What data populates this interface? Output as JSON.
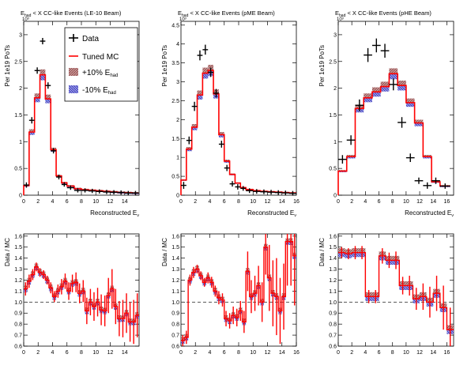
{
  "figure": {
    "legend": {
      "data_label": "Data",
      "mc_label": "Tuned MC",
      "plus_main": "+10% E",
      "plus_sub": "had",
      "minus_main": "-10% E",
      "minus_sub": "had"
    },
    "colors": {
      "mc": "#ff0000",
      "data": "#000000",
      "band_plus": "#b07878",
      "band_minus": "#6a6ad0",
      "unity": "#555555"
    }
  },
  "chart_data": [
    {
      "id": "le_spectrum",
      "type": "line",
      "title_pre": "E",
      "title_sub": "had",
      "title_post": " < X CC-like Events (LE-10 Beam)",
      "xlabel_main": "Reconstructed E",
      "xlabel_sub": "ν",
      "ylabel": "Per 1e19 PoTs",
      "exponent_label": "10³",
      "xlim": [
        0,
        16
      ],
      "ylim": [
        0,
        3.25
      ],
      "xticks": [
        0,
        2,
        4,
        6,
        8,
        10,
        12,
        14
      ],
      "yticks": [
        0,
        0.5,
        1.0,
        1.5,
        2.0,
        2.5,
        3.0
      ],
      "ytick_labels": [
        "0",
        "0.5",
        "1",
        "1.5",
        "2",
        "2.5",
        "3"
      ],
      "bin_edges": [
        0,
        0.75,
        1.5,
        2.25,
        3,
        3.75,
        4.5,
        5.25,
        6,
        7,
        8,
        9,
        10,
        11,
        12,
        13,
        14,
        15,
        16
      ],
      "mc": [
        0.18,
        1.18,
        1.82,
        2.25,
        1.8,
        0.85,
        0.36,
        0.23,
        0.17,
        0.12,
        0.1,
        0.09,
        0.08,
        0.07,
        0.06,
        0.05,
        0.045,
        0.04
      ],
      "data_x": [
        0.375,
        1.125,
        1.875,
        2.625,
        3.375,
        4.125,
        4.875,
        5.625,
        6.5,
        7.5,
        8.5,
        9.5,
        10.5,
        11.5,
        12.5,
        13.5,
        14.5,
        15.5
      ],
      "data_y": [
        0.19,
        1.4,
        2.33,
        2.88,
        2.05,
        0.83,
        0.34,
        0.2,
        0.14,
        0.09,
        0.09,
        0.08,
        0.07,
        0.06,
        0.055,
        0.05,
        0.04,
        0.04
      ],
      "data_err": [
        0.02,
        0.03,
        0.03,
        0.03,
        0.03,
        0.02,
        0.015,
        0.01,
        0.01,
        0.01,
        0.01,
        0.01,
        0.01,
        0.01,
        0.01,
        0.01,
        0.01,
        0.01
      ],
      "has_legend": true
    },
    {
      "id": "pme_spectrum",
      "type": "line",
      "title_pre": "E",
      "title_sub": "had",
      "title_post": " < X CC-like Events (pME Beam)",
      "xlabel_main": "Reconstructed E",
      "xlabel_sub": "ν",
      "ylabel": "Per 1e19 PoTs",
      "exponent_label": "10³",
      "xlim": [
        0,
        16
      ],
      "ylim": [
        0,
        4.6
      ],
      "xticks": [
        0,
        2,
        4,
        6,
        8,
        10,
        12,
        14,
        16
      ],
      "yticks": [
        0,
        0.5,
        1.0,
        1.5,
        2.0,
        2.5,
        3.0,
        3.5,
        4.0,
        4.5
      ],
      "ytick_labels": [
        "0",
        "0.5",
        "1",
        "1.5",
        "2",
        "2.5",
        "3",
        "3.5",
        "4",
        "4.5"
      ],
      "bin_edges": [
        0,
        0.75,
        1.5,
        2.25,
        3,
        3.75,
        4.5,
        5.25,
        6,
        6.75,
        7.5,
        8.25,
        9,
        10,
        11,
        12,
        13,
        14,
        15,
        16
      ],
      "mc": [
        0.4,
        1.22,
        1.8,
        2.65,
        3.23,
        3.3,
        2.68,
        1.6,
        0.9,
        0.55,
        0.32,
        0.2,
        0.15,
        0.12,
        0.1,
        0.09,
        0.08,
        0.07,
        0.06
      ],
      "data_x": [
        0.375,
        1.125,
        1.875,
        2.625,
        3.375,
        4.125,
        4.875,
        5.625,
        6.375,
        7.125,
        7.875,
        8.625,
        9.5,
        10.5,
        11.5,
        12.5,
        13.5,
        14.5,
        15.5
      ],
      "data_y": [
        0.26,
        1.45,
        2.35,
        3.7,
        3.85,
        3.25,
        2.7,
        1.35,
        0.72,
        0.3,
        0.22,
        0.18,
        0.12,
        0.1,
        0.09,
        0.08,
        0.07,
        0.06,
        0.05
      ],
      "data_err": [
        0.05,
        0.06,
        0.08,
        0.09,
        0.09,
        0.08,
        0.07,
        0.05,
        0.04,
        0.03,
        0.03,
        0.02,
        0.02,
        0.02,
        0.02,
        0.02,
        0.02,
        0.02,
        0.02
      ],
      "has_legend": false
    },
    {
      "id": "phe_spectrum",
      "type": "line",
      "title_pre": "E",
      "title_sub": "had",
      "title_post": " < X CC-like Events (pHE Beam)",
      "xlabel_main": "Reconstructed E",
      "xlabel_sub": "ν",
      "ylabel": "Per 1e19 PoTs",
      "exponent_label": "10³",
      "xlim": [
        0,
        17
      ],
      "ylim": [
        0,
        3.25
      ],
      "xticks": [
        0,
        2,
        4,
        6,
        8,
        10,
        12,
        14,
        16
      ],
      "yticks": [
        0,
        0.5,
        1.0,
        1.5,
        2.0,
        2.5,
        3.0
      ],
      "ytick_labels": [
        "0",
        "0.5",
        "1",
        "1.5",
        "2",
        "2.5",
        "3"
      ],
      "bin_edges": [
        0,
        1.25,
        2.5,
        3.75,
        5,
        6.25,
        7.5,
        8.75,
        10,
        11.25,
        12.5,
        13.75,
        15,
        16.5
      ],
      "mc": [
        0.45,
        0.72,
        1.62,
        1.82,
        1.93,
        2.03,
        2.27,
        2.05,
        1.73,
        1.35,
        0.72,
        0.25,
        0.17
      ],
      "data_x": [
        0.625,
        1.875,
        3.125,
        4.375,
        5.625,
        6.875,
        8.125,
        9.375,
        10.625,
        11.875,
        13.125,
        14.375,
        15.75
      ],
      "data_y": [
        0.67,
        1.03,
        1.68,
        2.62,
        2.8,
        2.7,
        2.07,
        1.36,
        0.7,
        0.27,
        0.18,
        0.27,
        0.17
      ],
      "data_err": [
        0.05,
        0.06,
        0.08,
        0.1,
        0.1,
        0.1,
        0.08,
        0.07,
        0.05,
        0.03,
        0.03,
        0.03,
        0.02
      ],
      "has_legend": false
    },
    {
      "id": "le_ratio",
      "type": "line",
      "ylabel": "Data / MC",
      "xlim": [
        0,
        16
      ],
      "ylim": [
        0.6,
        1.62
      ],
      "xticks": [
        0,
        2,
        4,
        6,
        8,
        10,
        12,
        14
      ],
      "yticks": [
        0.6,
        0.7,
        0.8,
        0.9,
        1.0,
        1.1,
        1.2,
        1.3,
        1.4,
        1.5,
        1.6
      ],
      "ytick_labels": [
        "0.6",
        "0.7",
        "0.8",
        "0.9",
        "1.0",
        "1.1",
        "1.2",
        "1.3",
        "1.4",
        "1.5",
        "1.6"
      ],
      "bin_edges": [
        0,
        0.5,
        1,
        1.5,
        2,
        2.5,
        3,
        3.5,
        4,
        4.5,
        5,
        5.5,
        6,
        6.5,
        7,
        7.5,
        8,
        8.5,
        9,
        9.5,
        10,
        10.5,
        11,
        11.5,
        12,
        12.5,
        13,
        13.5,
        14,
        14.5,
        15,
        15.5,
        16
      ],
      "ratio": [
        1.12,
        1.19,
        1.25,
        1.32,
        1.27,
        1.25,
        1.2,
        1.13,
        1.05,
        1.1,
        1.14,
        1.19,
        1.1,
        1.17,
        1.18,
        1.08,
        1.1,
        0.92,
        1.0,
        0.96,
        1.0,
        0.93,
        0.92,
        1.06,
        1.12,
        0.96,
        0.85,
        0.85,
        0.9,
        0.82,
        0.82,
        0.88
      ],
      "ratio_err": [
        0.06,
        0.06,
        0.05,
        0.04,
        0.04,
        0.04,
        0.04,
        0.05,
        0.05,
        0.06,
        0.07,
        0.07,
        0.08,
        0.08,
        0.09,
        0.09,
        0.1,
        0.12,
        0.12,
        0.13,
        0.13,
        0.14,
        0.14,
        0.16,
        0.18,
        0.16,
        0.16,
        0.17,
        0.18,
        0.18,
        0.2,
        0.2
      ],
      "band": 0.03
    },
    {
      "id": "pme_ratio",
      "type": "line",
      "ylabel": "Data / MC",
      "xlim": [
        0,
        16
      ],
      "ylim": [
        0.6,
        1.62
      ],
      "xticks": [
        0,
        2,
        4,
        6,
        8,
        10,
        12,
        14,
        16
      ],
      "yticks": [
        0.6,
        0.7,
        0.8,
        0.9,
        1.0,
        1.1,
        1.2,
        1.3,
        1.4,
        1.5,
        1.6
      ],
      "ytick_labels": [
        "0.6",
        "0.7",
        "0.8",
        "0.9",
        "1.0",
        "1.1",
        "1.2",
        "1.3",
        "1.4",
        "1.5",
        "1.6"
      ],
      "bin_edges": [
        0,
        0.5,
        1,
        1.5,
        2,
        2.5,
        3,
        3.5,
        4,
        4.5,
        5,
        5.5,
        6,
        6.5,
        7,
        7.5,
        8,
        8.5,
        9,
        9.5,
        10,
        10.5,
        11,
        11.5,
        12,
        12.5,
        13,
        13.5,
        14,
        14.5,
        15,
        15.5,
        16
      ],
      "ratio": [
        0.65,
        0.68,
        1.2,
        1.27,
        1.3,
        1.24,
        1.18,
        1.22,
        1.18,
        1.1,
        1.04,
        1.02,
        0.85,
        0.83,
        0.88,
        0.86,
        0.92,
        0.82,
        1.28,
        1.05,
        1.08,
        1.15,
        1.0,
        1.5,
        1.22,
        1.08,
        1.05,
        0.92,
        1.05,
        1.55,
        1.55,
        1.42
      ],
      "ratio_err": [
        0.05,
        0.06,
        0.05,
        0.05,
        0.04,
        0.04,
        0.04,
        0.05,
        0.05,
        0.05,
        0.06,
        0.06,
        0.07,
        0.07,
        0.08,
        0.08,
        0.09,
        0.1,
        0.18,
        0.15,
        0.16,
        0.18,
        0.18,
        0.25,
        0.3,
        0.3,
        0.35,
        0.3,
        0.3,
        0.4,
        0.4,
        0.45
      ],
      "band": 0.03
    },
    {
      "id": "phe_ratio",
      "type": "line",
      "ylabel": "Data / MC",
      "xlim": [
        0,
        17
      ],
      "ylim": [
        0.6,
        1.62
      ],
      "xticks": [
        0,
        2,
        4,
        6,
        8,
        10,
        12,
        14,
        16
      ],
      "yticks": [
        0.6,
        0.7,
        0.8,
        0.9,
        1.0,
        1.1,
        1.2,
        1.3,
        1.4,
        1.5,
        1.6
      ],
      "ytick_labels": [
        "0.6",
        "0.7",
        "0.8",
        "0.9",
        "1.0",
        "1.1",
        "1.2",
        "1.3",
        "1.4",
        "1.5",
        "1.6"
      ],
      "bin_edges": [
        0,
        1,
        2,
        3,
        4,
        5,
        6,
        7,
        8,
        9,
        10,
        11,
        12,
        13,
        14,
        15,
        16,
        17
      ],
      "ratio": [
        1.45,
        1.44,
        1.45,
        1.45,
        1.05,
        1.05,
        1.42,
        1.38,
        1.38,
        1.15,
        1.15,
        1.03,
        1.05,
        1.0,
        1.08,
        0.95,
        0.75
      ],
      "ratio_err": [
        0.05,
        0.05,
        0.06,
        0.06,
        0.06,
        0.06,
        0.07,
        0.07,
        0.08,
        0.08,
        0.09,
        0.1,
        0.12,
        0.14,
        0.16,
        0.2,
        0.2
      ],
      "band": 0.04
    }
  ]
}
